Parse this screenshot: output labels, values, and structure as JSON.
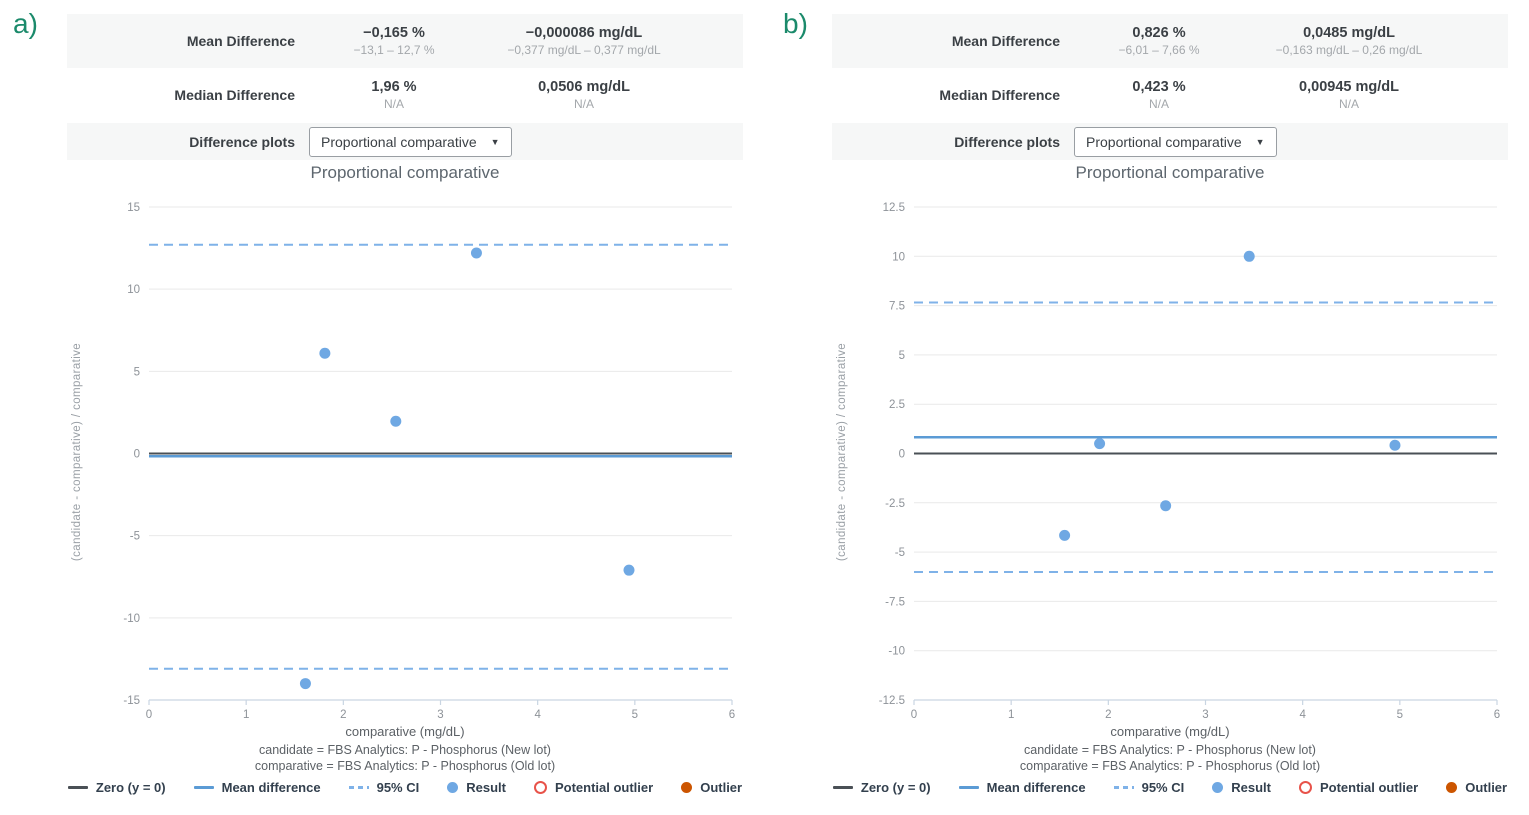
{
  "colors": {
    "label_green": "#1b8a6b",
    "grid": "#e9e9e9",
    "axis": "#c9d5e2",
    "tick_text": "#8d9298",
    "zero_line": "#4a5056",
    "mean_line": "#5b9bd5",
    "ci_line": "#7fb2e8",
    "point": "#6fa8e3",
    "potential_outlier": "#e8534a",
    "outlier": "#cc5500"
  },
  "legend": {
    "items": [
      {
        "kind": "line",
        "color_key": "zero_line",
        "label": "Zero (y = 0)"
      },
      {
        "kind": "line",
        "color_key": "mean_line",
        "label": "Mean difference"
      },
      {
        "kind": "dashed",
        "color_key": "ci_line",
        "label": "95% CI"
      },
      {
        "kind": "dot",
        "color_key": "point",
        "label": "Result"
      },
      {
        "kind": "ring",
        "color_key": "potential_outlier",
        "label": "Potential outlier"
      },
      {
        "kind": "dot",
        "color_key": "outlier",
        "label": "Outlier"
      }
    ]
  },
  "panels": [
    {
      "label": "a)",
      "table": {
        "mean": {
          "label": "Mean Difference",
          "pct": "−0,165 %",
          "pct_sub": "−13,1 – 12,7 %",
          "abs": "−0,000086 mg/dL",
          "abs_sub": "−0,377 mg/dL – 0,377 mg/dL"
        },
        "median": {
          "label": "Median Difference",
          "pct": "1,96 %",
          "pct_sub": "N/A",
          "abs": "0,0506 mg/dL",
          "abs_sub": "N/A"
        },
        "plots_label": "Difference plots",
        "dropdown_value": "Proportional comparative"
      },
      "chart_data": {
        "type": "scatter",
        "title": "Proportional comparative",
        "xlabel": "comparative (mg/dL)",
        "ylabel": "(candidate - comparative) / comparative",
        "caption_lines": [
          "candidate = FBS Analytics: P - Phosphorus (New lot)",
          "comparative = FBS Analytics: P - Phosphorus (Old lot)"
        ],
        "xlim": [
          0,
          6
        ],
        "ylim": [
          -15,
          15
        ],
        "xticks": [
          0,
          1,
          2,
          3,
          4,
          5,
          6
        ],
        "yticks": [
          15,
          10,
          5,
          0,
          -5,
          -10,
          -15
        ],
        "points": [
          [
            1.61,
            -14.0
          ],
          [
            1.81,
            6.1
          ],
          [
            2.54,
            1.96
          ],
          [
            3.37,
            12.2
          ],
          [
            4.94,
            -7.1
          ]
        ],
        "zero_line": 0,
        "mean_difference": -0.165,
        "ci95": [
          -13.1,
          12.7
        ],
        "grid": "horizontal",
        "legend_position": "bottom"
      }
    },
    {
      "label": "b)",
      "table": {
        "mean": {
          "label": "Mean Difference",
          "pct": "0,826 %",
          "pct_sub": "−6,01 – 7,66 %",
          "abs": "0,0485 mg/dL",
          "abs_sub": "−0,163 mg/dL – 0,26 mg/dL"
        },
        "median": {
          "label": "Median Difference",
          "pct": "0,423 %",
          "pct_sub": "N/A",
          "abs": "0,00945 mg/dL",
          "abs_sub": "N/A"
        },
        "plots_label": "Difference plots",
        "dropdown_value": "Proportional comparative"
      },
      "chart_data": {
        "type": "scatter",
        "title": "Proportional comparative",
        "xlabel": "comparative (mg/dL)",
        "ylabel": "(candidate - comparative) / comparative",
        "caption_lines": [
          "candidate = FBS Analytics: P - Phosphorus (New lot)",
          "comparative = FBS Analytics: P - Phosphorus (Old lot)"
        ],
        "xlim": [
          0,
          6
        ],
        "ylim": [
          -12.5,
          12.5
        ],
        "xticks": [
          0,
          1,
          2,
          3,
          4,
          5,
          6
        ],
        "yticks": [
          12.5,
          10,
          7.5,
          5,
          2.5,
          0,
          -2.5,
          -5,
          -7.5,
          -10,
          -12.5
        ],
        "points": [
          [
            1.55,
            -4.15
          ],
          [
            1.91,
            0.5
          ],
          [
            2.59,
            -2.65
          ],
          [
            3.45,
            10.0
          ],
          [
            4.95,
            0.42
          ]
        ],
        "zero_line": 0,
        "mean_difference": 0.826,
        "ci95": [
          -6.01,
          7.66
        ],
        "grid": "horizontal",
        "legend_position": "bottom"
      }
    }
  ]
}
